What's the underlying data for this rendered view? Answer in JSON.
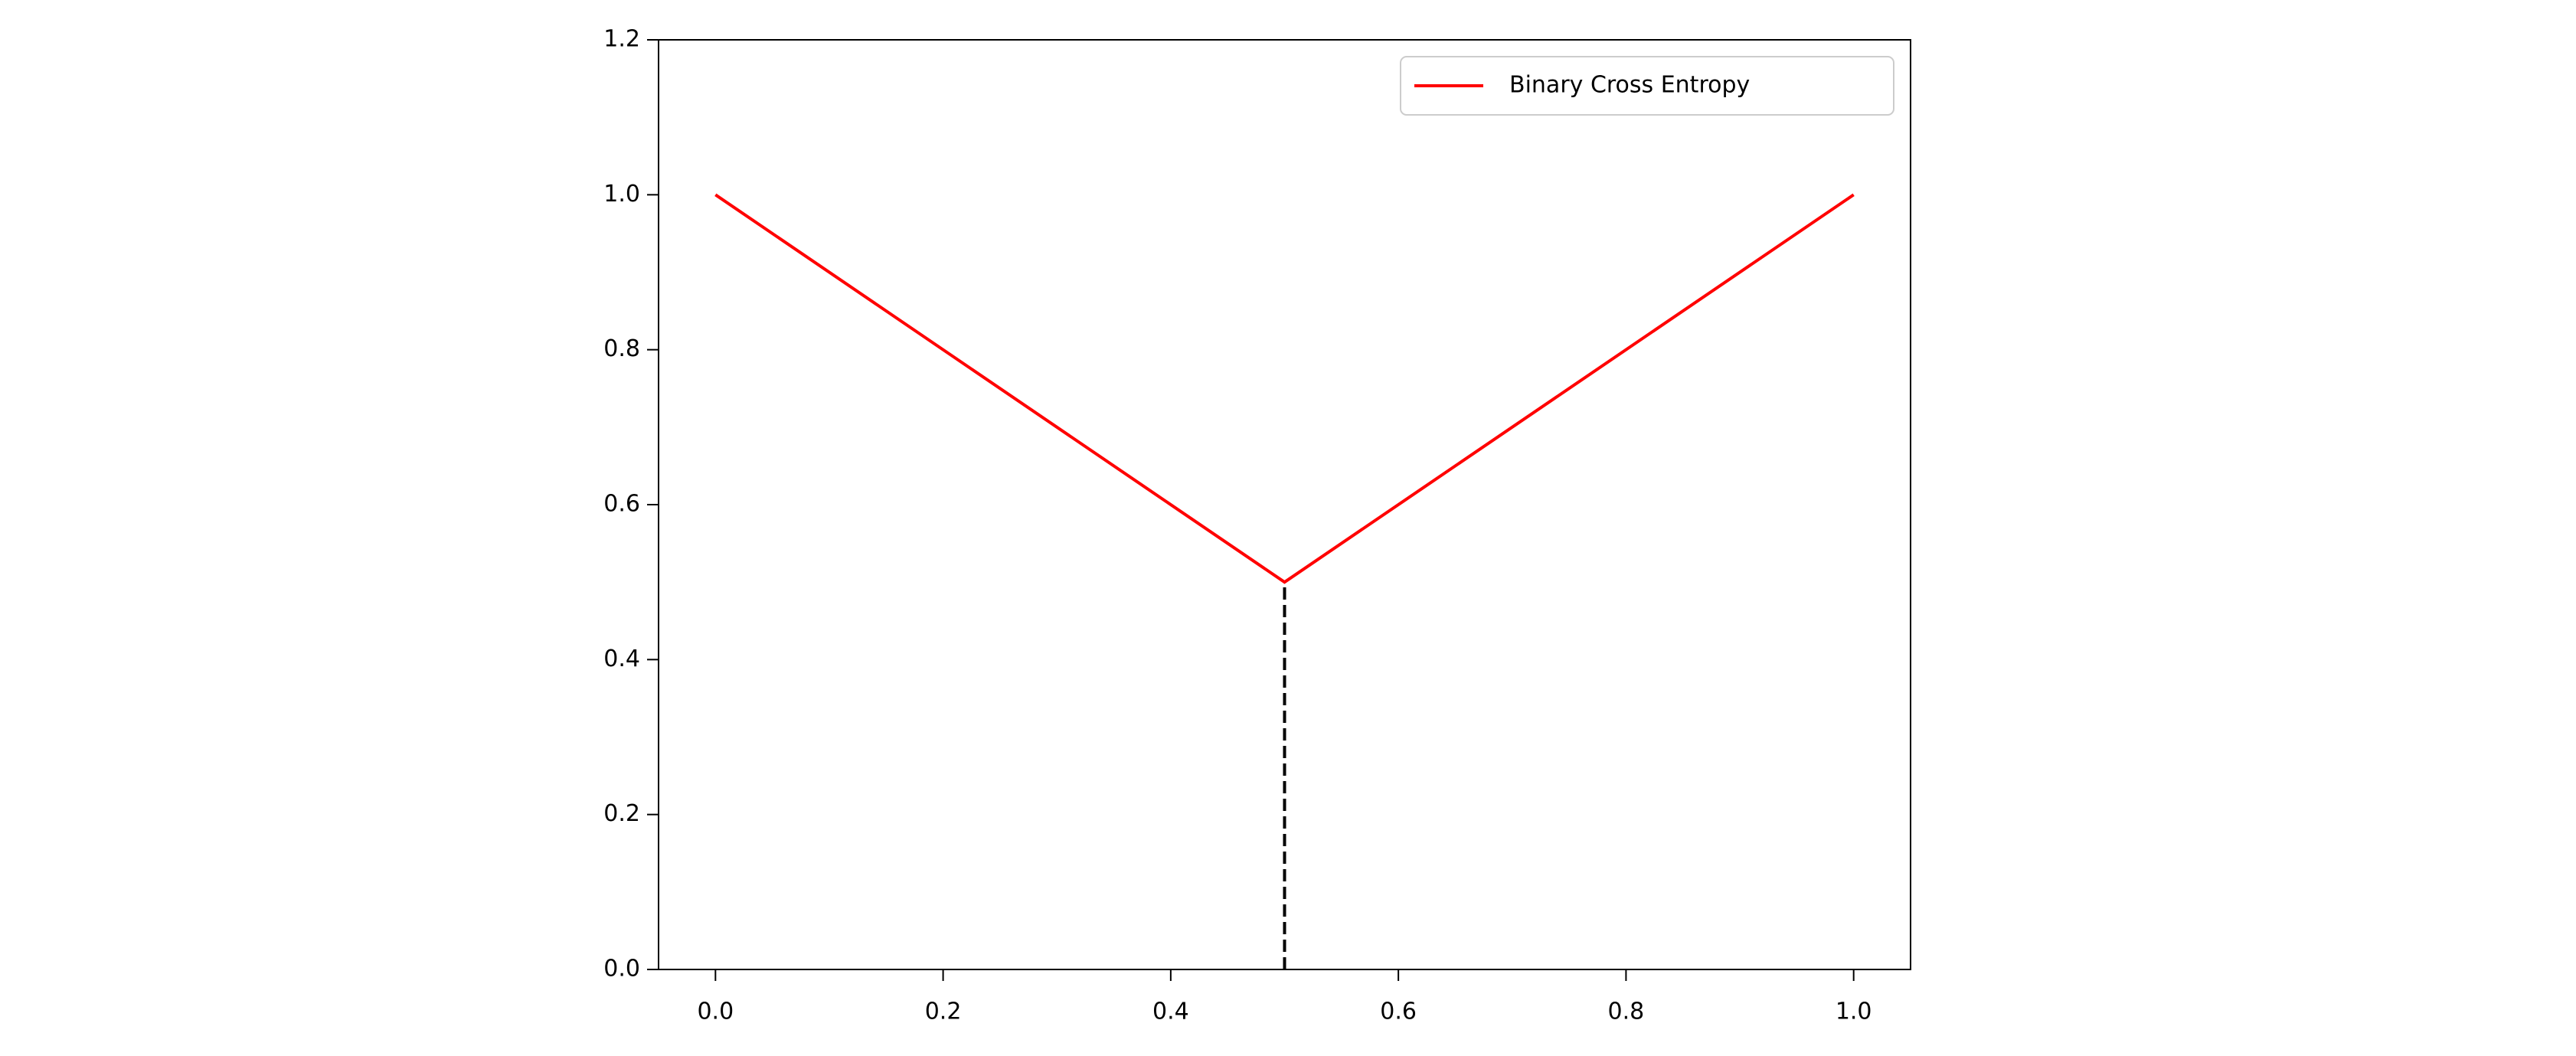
{
  "chart_data": {
    "type": "line",
    "series": [
      {
        "name": "Binary Cross Entropy",
        "color": "#ff0000",
        "x": [
          0,
          0.5,
          1
        ],
        "values": [
          1,
          0.5,
          1
        ]
      }
    ],
    "vline": {
      "x": 0.5,
      "ymin": 0,
      "ymax": 0.5,
      "color": "#000000",
      "style": "dashed"
    },
    "xlim": [
      -0.05,
      1.05
    ],
    "xticks": [
      {
        "value": 0,
        "label": "0.0"
      },
      0.2,
      0.4,
      0.6,
      0.8,
      {
        "value": 1,
        "label": "1.0"
      }
    ],
    "ylim": [
      0,
      1.2
    ],
    "yticks": [
      {
        "value": 0,
        "label": "0.0"
      },
      0.2,
      0.4,
      0.6,
      0.8,
      {
        "value": 1,
        "label": "1.0"
      },
      1.2
    ],
    "grid": false,
    "legend": "upper right"
  }
}
